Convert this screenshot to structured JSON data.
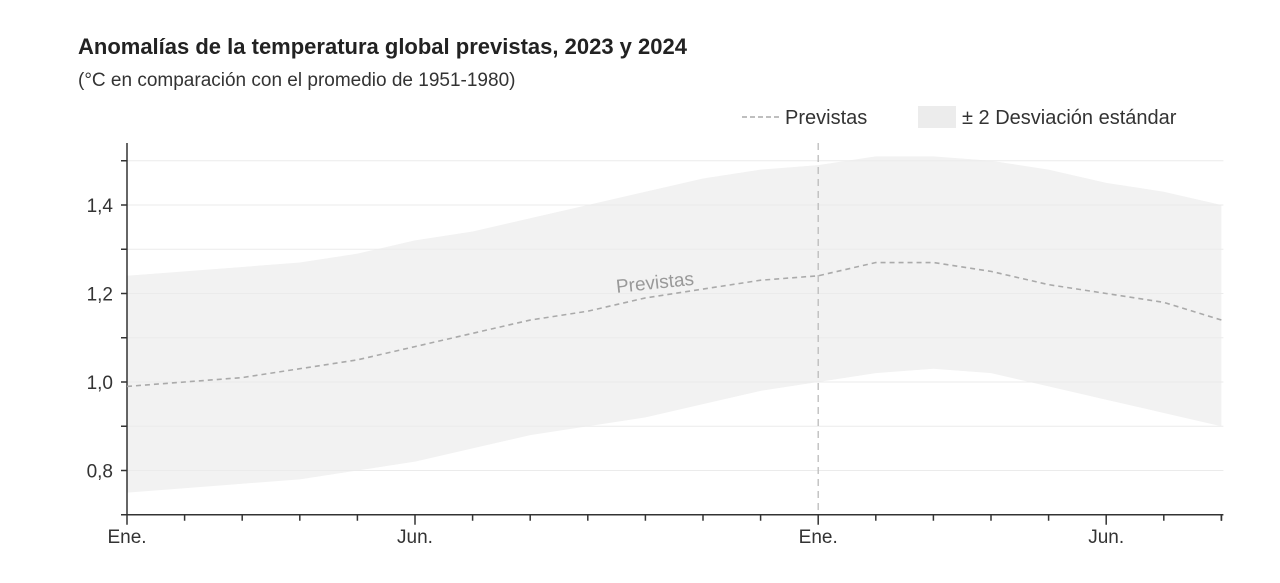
{
  "chart_data": {
    "type": "line",
    "title": "Anomalías de la temperatura global previstas, 2023 y 2024",
    "subtitle": "(°C en comparación con el promedio de 1951-1980)",
    "x": [
      "2023-01",
      "2023-02",
      "2023-03",
      "2023-04",
      "2023-05",
      "2023-06",
      "2023-07",
      "2023-08",
      "2023-09",
      "2023-10",
      "2023-11",
      "2023-12",
      "2024-01",
      "2024-02",
      "2024-03",
      "2024-04",
      "2024-05",
      "2024-06",
      "2024-07",
      "2024-08"
    ],
    "x_tick_labels": [
      {
        "x": "2023-01",
        "label": "Ene."
      },
      {
        "x": "2023-06",
        "label": "Jun."
      },
      {
        "x": "2024-01",
        "label": "Ene."
      },
      {
        "x": "2024-06",
        "label": "Jun."
      }
    ],
    "y_ticks": [
      {
        "value": 0.8,
        "label": "0,8"
      },
      {
        "value": 1.0,
        "label": "1,0"
      },
      {
        "value": 1.2,
        "label": "1,2"
      },
      {
        "value": 1.4,
        "label": "1,4"
      }
    ],
    "ylim": [
      0.7,
      1.54
    ],
    "grid": true,
    "series": [
      {
        "name": "Previstas",
        "style": "dashed",
        "color": "#aaaaaa",
        "values": [
          0.99,
          1.0,
          1.01,
          1.03,
          1.05,
          1.08,
          1.11,
          1.14,
          1.16,
          1.19,
          1.21,
          1.23,
          1.24,
          1.27,
          1.27,
          1.25,
          1.22,
          1.2,
          1.18,
          1.14
        ]
      }
    ],
    "band": {
      "name": "± 2 Desviación estándar",
      "color": "#f2f2f2",
      "upper": [
        1.24,
        1.25,
        1.26,
        1.27,
        1.29,
        1.32,
        1.34,
        1.37,
        1.4,
        1.43,
        1.46,
        1.48,
        1.49,
        1.51,
        1.51,
        1.5,
        1.48,
        1.45,
        1.43,
        1.4
      ],
      "lower": [
        0.75,
        0.76,
        0.77,
        0.78,
        0.8,
        0.82,
        0.85,
        0.88,
        0.9,
        0.92,
        0.95,
        0.98,
        1.0,
        1.02,
        1.03,
        1.02,
        0.99,
        0.96,
        0.93,
        0.9
      ]
    },
    "annotation": {
      "text": "Previstas",
      "x": "2023-10"
    },
    "vertical_marker": {
      "x": "2024-01",
      "style": "dashed"
    },
    "legend": {
      "placement": "top-right",
      "items": [
        "Previstas",
        "± 2 Desviación estándar"
      ]
    }
  }
}
